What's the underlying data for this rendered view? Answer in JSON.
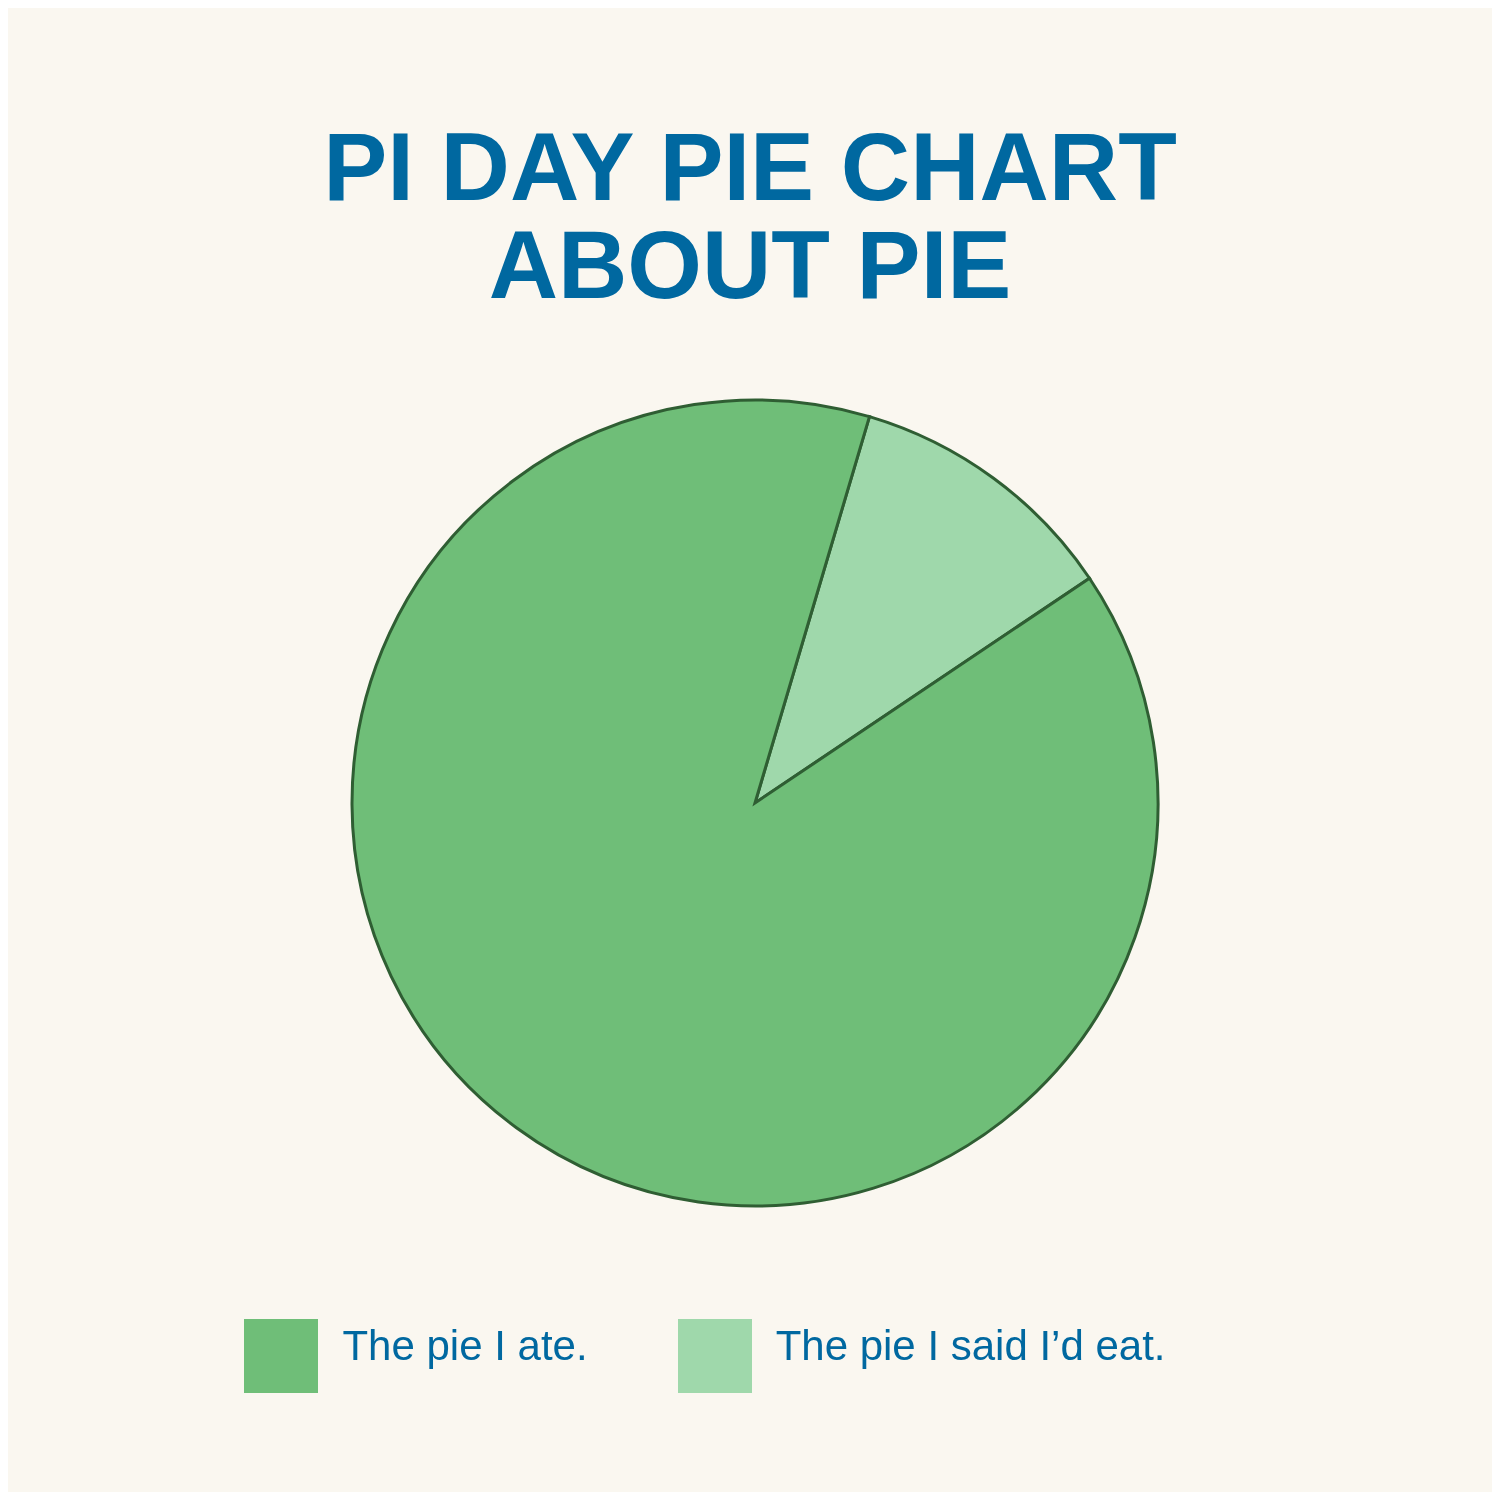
{
  "chart_data": {
    "type": "pie",
    "title": "PI DAY PIE CHART ABOUT PIE",
    "categories": [
      "The pie I said I’d eat.",
      "The pie I ate."
    ],
    "values": [
      11,
      89
    ],
    "colors": [
      "#9fd8ab",
      "#6fbe78"
    ],
    "legend": "bottom"
  }
}
